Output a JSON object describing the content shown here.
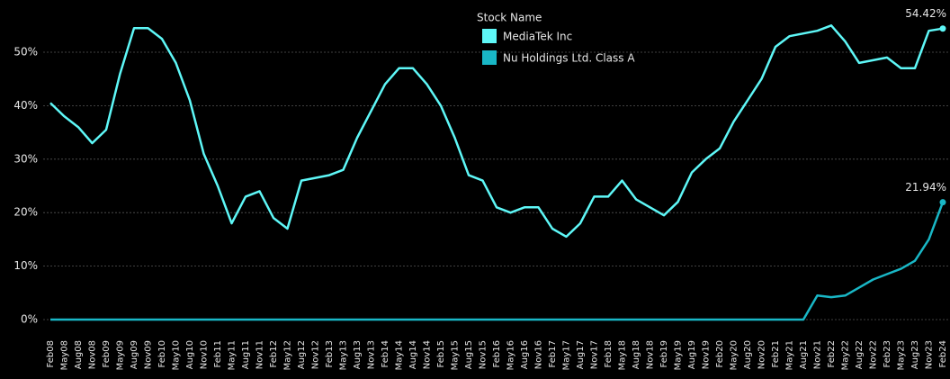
{
  "chart_data": {
    "type": "line",
    "legend_title": "Stock Name",
    "categories": [
      "Feb08",
      "May08",
      "Aug08",
      "Nov08",
      "Feb09",
      "May09",
      "Aug09",
      "Nov09",
      "Feb10",
      "May10",
      "Aug10",
      "Nov10",
      "Feb11",
      "May11",
      "Aug11",
      "Nov11",
      "Feb12",
      "May12",
      "Aug12",
      "Nov12",
      "Feb13",
      "May13",
      "Aug13",
      "Nov13",
      "Feb14",
      "May14",
      "Aug14",
      "Nov14",
      "Feb15",
      "May15",
      "Aug15",
      "Nov15",
      "Feb16",
      "May16",
      "Aug16",
      "Nov16",
      "Feb17",
      "May17",
      "Aug17",
      "Nov17",
      "Feb18",
      "May18",
      "Aug18",
      "Nov18",
      "Feb19",
      "May19",
      "Aug19",
      "Nov19",
      "Feb20",
      "May20",
      "Aug20",
      "Nov20",
      "Feb21",
      "May21",
      "Aug21",
      "Nov21",
      "Feb22",
      "May22",
      "Aug22",
      "Nov22",
      "Feb23",
      "May23",
      "Aug23",
      "Nov23",
      "Feb24"
    ],
    "series": [
      {
        "name": "MediaTek Inc",
        "color": "#5ef7f7",
        "values": [
          40.5,
          38,
          36,
          33,
          35.5,
          46,
          54.5,
          54.5,
          52.5,
          48,
          41,
          31,
          25,
          18,
          23,
          24,
          19,
          17,
          26,
          26.5,
          27,
          28,
          34,
          39,
          44,
          47,
          47,
          44,
          40,
          34,
          27,
          26,
          21,
          20,
          21,
          21,
          17,
          15.5,
          18,
          23,
          23,
          26,
          22.5,
          21,
          19.5,
          22,
          27.5,
          30,
          32,
          37,
          41,
          45,
          51,
          53,
          53.5,
          54,
          55,
          52,
          48,
          48.5,
          49,
          47,
          47,
          54,
          54.42
        ],
        "value_labels": [
          null,
          null,
          null,
          null,
          null,
          null,
          null,
          null,
          null,
          null,
          null,
          null,
          null,
          null,
          null,
          null,
          null,
          null,
          null,
          null,
          null,
          null,
          null,
          null,
          null,
          null,
          null,
          null,
          null,
          null,
          null,
          null,
          null,
          null,
          null,
          null,
          null,
          null,
          null,
          null,
          null,
          null,
          null,
          null,
          null,
          null,
          null,
          null,
          null,
          null,
          null,
          null,
          null,
          null,
          null,
          null,
          null,
          null,
          null,
          null,
          null,
          null,
          null,
          null,
          "54.42%"
        ]
      },
      {
        "name": "Nu Holdings Ltd. Class A",
        "color": "#19b7c6",
        "values": [
          0,
          0,
          0,
          0,
          0,
          0,
          0,
          0,
          0,
          0,
          0,
          0,
          0,
          0,
          0,
          0,
          0,
          0,
          0,
          0,
          0,
          0,
          0,
          0,
          0,
          0,
          0,
          0,
          0,
          0,
          0,
          0,
          0,
          0,
          0,
          0,
          0,
          0,
          0,
          0,
          0,
          0,
          0,
          0,
          0,
          0,
          0,
          0,
          0,
          0,
          0,
          0,
          0,
          0,
          0,
          4.5,
          4.2,
          4.5,
          6,
          7.5,
          8.5,
          9.5,
          11,
          15,
          21.94
        ],
        "value_labels": [
          null,
          null,
          null,
          null,
          null,
          null,
          null,
          null,
          null,
          null,
          null,
          null,
          null,
          null,
          null,
          null,
          null,
          null,
          null,
          null,
          null,
          null,
          null,
          null,
          null,
          null,
          null,
          null,
          null,
          null,
          null,
          null,
          null,
          null,
          null,
          null,
          null,
          null,
          null,
          null,
          null,
          null,
          null,
          null,
          null,
          null,
          null,
          null,
          null,
          null,
          null,
          null,
          null,
          null,
          null,
          null,
          null,
          null,
          null,
          null,
          null,
          null,
          null,
          null,
          "21.94%"
        ]
      }
    ],
    "ylim": [
      -2,
      57
    ],
    "yticks": [
      {
        "value": 0,
        "label": "0%"
      },
      {
        "value": 10,
        "label": "10%"
      },
      {
        "value": 20,
        "label": "20%"
      },
      {
        "value": 30,
        "label": "30%"
      },
      {
        "value": 40,
        "label": "40%"
      },
      {
        "value": 50,
        "label": "50%"
      }
    ],
    "grid": true
  }
}
